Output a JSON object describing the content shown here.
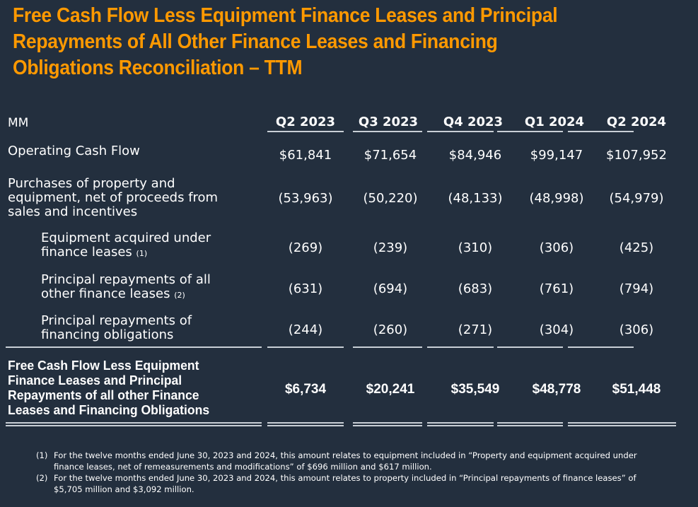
{
  "title_lines": [
    "Free Cash Flow Less Equipment Finance Leases and Principal",
    "Repayments of All Other Finance Leases and Financing",
    "Obligations Reconciliation – TTM"
  ],
  "table": {
    "unit_label": "MM",
    "columns": [
      "Q2 2023",
      "Q3 2023",
      "Q4 2023",
      "Q1 2024",
      "Q2 2024"
    ],
    "rows": [
      {
        "label_lines": [
          "Operating Cash Flow"
        ],
        "footnote": "",
        "values": [
          "$61,841",
          "$71,654",
          "$84,946",
          "$99,147",
          "$107,952"
        ]
      },
      {
        "label_lines": [
          "Purchases of property and",
          "equipment, net of proceeds from",
          "sales and incentives"
        ],
        "footnote": "",
        "values": [
          "(53,963)",
          "(50,220)",
          "(48,133)",
          "(48,998)",
          "(54,979)"
        ]
      },
      {
        "label_lines": [
          "Equipment acquired under",
          "finance leases"
        ],
        "footnote": "(1)",
        "values": [
          "(269)",
          "(239)",
          "(310)",
          "(306)",
          "(425)"
        ]
      },
      {
        "label_lines": [
          "Principal repayments of all",
          "other finance leases"
        ],
        "footnote": "(2)",
        "values": [
          "(631)",
          "(694)",
          "(683)",
          "(761)",
          "(794)"
        ]
      },
      {
        "label_lines": [
          "Principal repayments of",
          "financing obligations"
        ],
        "footnote": "",
        "values": [
          "(244)",
          "(260)",
          "(271)",
          "(304)",
          "(306)"
        ]
      }
    ],
    "total": {
      "label_lines": [
        "Free Cash Flow Less Equipment",
        "Finance Leases and Principal",
        "Repayments of all other Finance",
        "Leases and Financing Obligations"
      ],
      "values": [
        "$6,734",
        "$20,241",
        "$35,549",
        "$48,778",
        "$51,448"
      ]
    }
  },
  "footnotes": [
    {
      "num": "(1)",
      "text": "For the twelve months ended June 30, 2023 and 2024, this amount relates to equipment included in “Property and equipment acquired under finance leases, net of remeasurements and modifications” of $696 million and $617 million."
    },
    {
      "num": "(2)",
      "text": "For the twelve months ended June 30, 2023 and 2024, this amount relates to property included in “Principal repayments of finance leases” of $5,705 million and $3,092 million."
    }
  ],
  "colors": {
    "background": "#232f3e",
    "accent": "#ff9900",
    "text": "#ffffff",
    "rule": "#c9cfd6"
  }
}
